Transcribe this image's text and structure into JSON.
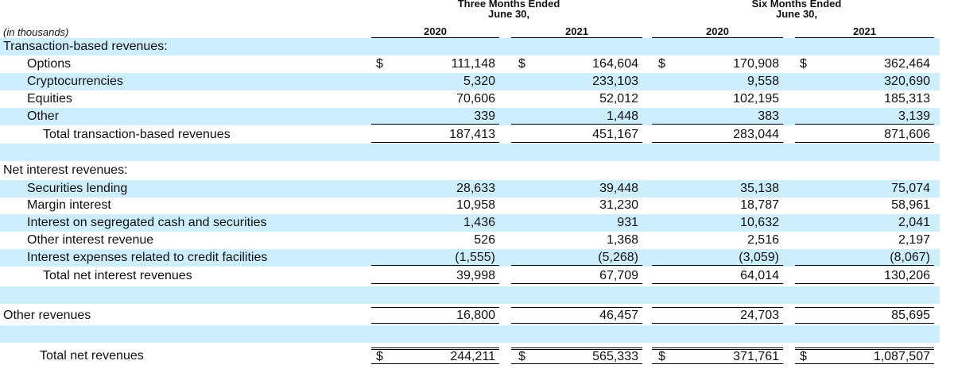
{
  "header": {
    "units": "(in thousands)",
    "groups": [
      {
        "title": "Three Months Ended",
        "subtitle": "June 30,",
        "years": [
          "2020",
          "2021"
        ]
      },
      {
        "title": "Six Months Ended",
        "subtitle": "June 30,",
        "years": [
          "2020",
          "2021"
        ]
      }
    ]
  },
  "table": {
    "rows": [
      {
        "label": "Transaction-based revenues:"
      },
      {
        "label": "Options",
        "currency": "$",
        "values": [
          "111,148",
          "164,604",
          "170,908",
          "362,464"
        ]
      },
      {
        "label": "Cryptocurrencies",
        "values": [
          "5,320",
          "233,103",
          "9,558",
          "320,690"
        ]
      },
      {
        "label": "Equities",
        "values": [
          "70,606",
          "52,012",
          "102,195",
          "185,313"
        ]
      },
      {
        "label": "Other",
        "values": [
          "339",
          "1,448",
          "383",
          "3,139"
        ]
      },
      {
        "label": "Total transaction-based revenues",
        "values": [
          "187,413",
          "451,167",
          "283,044",
          "871,606"
        ]
      },
      {
        "label": "Net interest revenues:"
      },
      {
        "label": "Securities lending",
        "values": [
          "28,633",
          "39,448",
          "35,138",
          "75,074"
        ]
      },
      {
        "label": "Margin interest",
        "values": [
          "10,958",
          "31,230",
          "18,787",
          "58,961"
        ]
      },
      {
        "label": "Interest on segregated cash and securities",
        "values": [
          "1,436",
          "931",
          "10,632",
          "2,041"
        ]
      },
      {
        "label": "Other interest revenue",
        "values": [
          "526",
          "1,368",
          "2,516",
          "2,197"
        ]
      },
      {
        "label": "Interest expenses related to credit facilities",
        "values": [
          "(1,555)",
          "(5,268)",
          "(3,059)",
          "(8,067)"
        ]
      },
      {
        "label": "Total net interest revenues",
        "values": [
          "39,998",
          "67,709",
          "64,014",
          "130,206"
        ]
      },
      {
        "label": "Other revenues",
        "values": [
          "16,800",
          "46,457",
          "24,703",
          "85,695"
        ]
      },
      {
        "label": "Total net revenues",
        "currency": "$",
        "values": [
          "244,211",
          "565,333",
          "371,761",
          "1,087,507"
        ]
      }
    ]
  }
}
